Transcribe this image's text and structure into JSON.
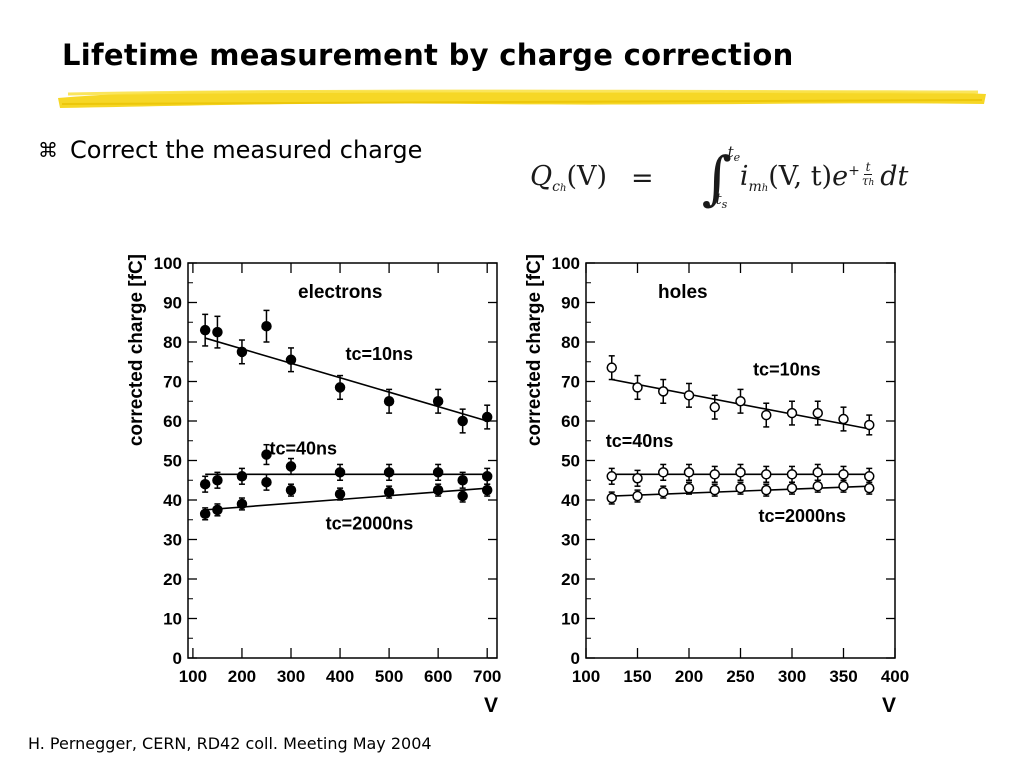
{
  "slide": {
    "title": "Lifetime measurement by charge correction",
    "bullet_icon": "command-key-icon",
    "bullet_glyph": "⌘",
    "bullet_text": "Correct the measured charge",
    "footer": "H. Pernegger, CERN, RD42 coll. Meeting May 2004",
    "highlight_color": "#f5d000"
  },
  "equation": {
    "lhs_base": "Q",
    "lhs_sub": "c",
    "lhs_subsub": "h",
    "lhs_arg": "(V)",
    "equals": "=",
    "integral": "∫",
    "upper_limit": "t",
    "upper_limit_sub": "e",
    "lower_limit": "t",
    "lower_limit_sub": "s",
    "integrand_base": "i",
    "integrand_sub": "m",
    "integrand_subsub": "h",
    "integrand_arg": "(V, t)",
    "exp_base": "e",
    "exp_sign": "+",
    "frac_num": "t",
    "frac_den": "τ",
    "frac_den_sub": "h",
    "differential": "dt"
  },
  "chart_data": [
    {
      "type": "scatter",
      "title": "electrons",
      "xlabel": "V",
      "ylabel": "corrected charge [fC]",
      "xlim": [
        90,
        720
      ],
      "ylim": [
        0,
        100
      ],
      "xticks": [
        100,
        200,
        300,
        400,
        500,
        600,
        700
      ],
      "yticks": [
        0,
        10,
        20,
        30,
        40,
        50,
        60,
        70,
        80,
        90,
        100
      ],
      "marker": "filled-circle",
      "annotations": [
        {
          "text": "tc=10ns",
          "x": 480,
          "y": 77
        },
        {
          "text": "tc=40ns",
          "x": 325,
          "y": 53
        },
        {
          "text": "tc=2000ns",
          "x": 460,
          "y": 34
        }
      ],
      "series": [
        {
          "name": "tc=10ns",
          "x": [
            125,
            150,
            200,
            250,
            300,
            400,
            500,
            600,
            650,
            700
          ],
          "y": [
            83,
            82.5,
            77.5,
            84,
            75.5,
            68.5,
            65,
            65,
            60,
            61
          ],
          "err": [
            4,
            4,
            3,
            4,
            3,
            3,
            3,
            3,
            3,
            3
          ],
          "fit": [
            [
              125,
              81
            ],
            [
              700,
              60
            ]
          ]
        },
        {
          "name": "tc=40ns",
          "x": [
            125,
            150,
            200,
            250,
            300,
            400,
            500,
            600,
            650,
            700
          ],
          "y": [
            44,
            45,
            46,
            51.5,
            48.5,
            47,
            47,
            47,
            45,
            46
          ],
          "err": [
            2,
            2,
            2,
            2.5,
            2,
            2,
            2,
            2,
            2,
            2
          ],
          "fit": [
            [
              125,
              46.5
            ],
            [
              700,
              46.5
            ]
          ]
        },
        {
          "name": "tc=2000ns",
          "x": [
            125,
            150,
            200,
            250,
            300,
            400,
            500,
            600,
            650,
            700
          ],
          "y": [
            36.5,
            37.5,
            39,
            44.5,
            42.5,
            41.5,
            42,
            42.5,
            41,
            42.5
          ],
          "err": [
            1.5,
            1.5,
            1.5,
            2,
            1.5,
            1.5,
            1.5,
            1.5,
            1.5,
            1.5
          ],
          "fit": [
            [
              125,
              37.5
            ],
            [
              700,
              43
            ]
          ]
        }
      ]
    },
    {
      "type": "scatter",
      "title": "holes",
      "xlabel": "V",
      "ylabel": "corrected charge [fC]",
      "xlim": [
        100,
        400
      ],
      "ylim": [
        0,
        100
      ],
      "xticks": [
        100,
        150,
        200,
        250,
        300,
        350,
        400
      ],
      "yticks": [
        0,
        10,
        20,
        30,
        40,
        50,
        60,
        70,
        80,
        90,
        100
      ],
      "marker": "open-circle",
      "annotations": [
        {
          "text": "tc=10ns",
          "x": 295,
          "y": 73
        },
        {
          "text": "tc=40ns",
          "x": 152,
          "y": 55
        },
        {
          "text": "tc=2000ns",
          "x": 310,
          "y": 36
        }
      ],
      "series": [
        {
          "name": "tc=10ns",
          "x": [
            125,
            150,
            175,
            200,
            225,
            250,
            275,
            300,
            325,
            350,
            375
          ],
          "y": [
            73.5,
            68.5,
            67.5,
            66.5,
            63.5,
            65,
            61.5,
            62,
            62,
            60.5,
            59
          ],
          "err": [
            3,
            3,
            3,
            3,
            3,
            3,
            3,
            3,
            3,
            3,
            2.5
          ],
          "fit": [
            [
              125,
              70.5
            ],
            [
              375,
              58
            ]
          ]
        },
        {
          "name": "tc=40ns",
          "x": [
            125,
            150,
            175,
            200,
            225,
            250,
            275,
            300,
            325,
            350,
            375
          ],
          "y": [
            46,
            45.5,
            47,
            47,
            46.5,
            47,
            46.5,
            46.5,
            47,
            46.5,
            46
          ],
          "err": [
            2,
            2,
            2,
            2,
            2,
            2,
            2,
            2,
            2,
            2,
            2
          ],
          "fit": [
            [
              125,
              46.5
            ],
            [
              375,
              46.5
            ]
          ]
        },
        {
          "name": "tc=2000ns",
          "x": [
            125,
            150,
            175,
            200,
            225,
            250,
            275,
            300,
            325,
            350,
            375
          ],
          "y": [
            40.5,
            41,
            42,
            43,
            42.5,
            43,
            42.5,
            43,
            43.5,
            43.5,
            43
          ],
          "err": [
            1.5,
            1.5,
            1.5,
            1.5,
            1.5,
            1.5,
            1.5,
            1.5,
            1.5,
            1.5,
            1.5
          ],
          "fit": [
            [
              125,
              41
            ],
            [
              375,
              43.5
            ]
          ]
        }
      ]
    }
  ]
}
